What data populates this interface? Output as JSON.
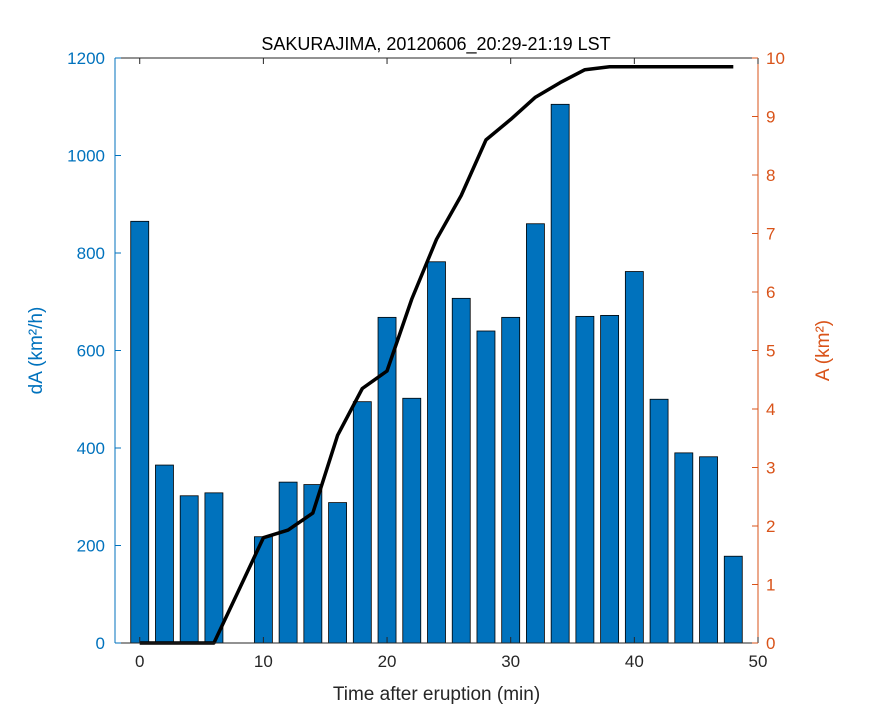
{
  "chart_data": {
    "type": "bar",
    "title": "SAKURAJIMA, 20120606_20:29-21:19 LST",
    "xlabel": "Time after eruption (min)",
    "ylabel_left": "dA (km²/h)",
    "ylabel_right": "A (km²)",
    "xlim": [
      -2,
      50
    ],
    "ylim_left": [
      0,
      1200
    ],
    "ylim_right": [
      0,
      10
    ],
    "x_ticks": [
      0,
      10,
      20,
      30,
      40,
      50
    ],
    "y_ticks_left": [
      0,
      200,
      400,
      600,
      800,
      1000,
      1200
    ],
    "y_ticks_right": [
      0,
      1,
      2,
      3,
      4,
      5,
      6,
      7,
      8,
      9,
      10
    ],
    "grid": false,
    "colors": {
      "bars": "#0072BD",
      "left_axis": "#0072BD",
      "right_axis": "#D95319",
      "line": "#000000"
    },
    "bars": {
      "name": "dA",
      "x": [
        0,
        2,
        4,
        6,
        8,
        10,
        12,
        14,
        16,
        18,
        20,
        22,
        24,
        26,
        28,
        30,
        32,
        34,
        36,
        38,
        40,
        42,
        44,
        46,
        48
      ],
      "values": [
        865,
        365,
        302,
        308,
        0,
        218,
        330,
        325,
        288,
        495,
        668,
        502,
        782,
        707,
        640,
        668,
        860,
        1105,
        670,
        672,
        762,
        500,
        390,
        382,
        178
      ]
    },
    "line": {
      "name": "A",
      "x": [
        0,
        2,
        4,
        6,
        8,
        10,
        12,
        14,
        16,
        18,
        20,
        22,
        24,
        26,
        28,
        30,
        32,
        34,
        36,
        38,
        40,
        42,
        44,
        46,
        48
      ],
      "values": [
        0,
        0,
        0,
        0,
        0.9,
        1.8,
        1.93,
        2.22,
        3.55,
        4.35,
        4.65,
        5.88,
        6.9,
        7.65,
        8.6,
        8.95,
        9.33,
        9.58,
        9.8,
        9.85,
        9.85,
        9.85,
        9.85,
        9.85,
        9.85
      ]
    }
  }
}
